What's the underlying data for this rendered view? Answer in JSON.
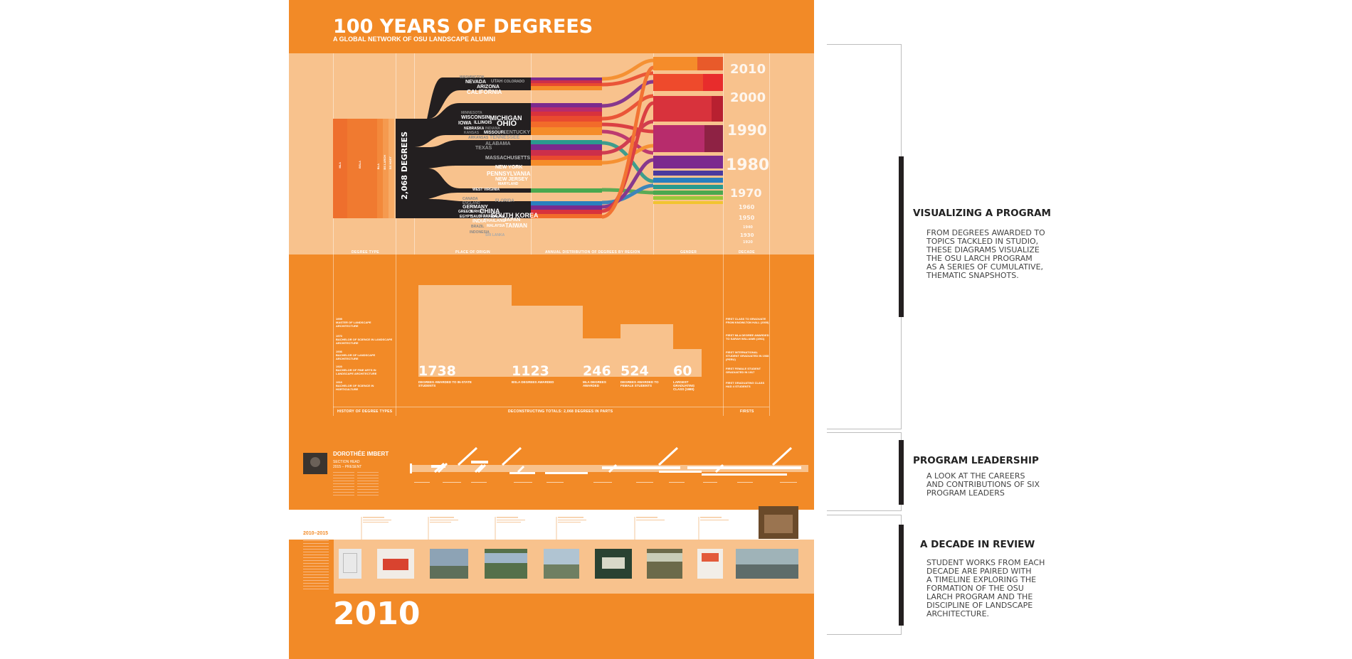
{
  "poster": {
    "title": "100 YEARS OF DEGREES",
    "subtitle": "A GLOBAL NETWORK OF OSU LANDSCAPE ALUMNI",
    "total_label": "2,068 DEGREES",
    "degree_types": [
      "MLA",
      "BSLA",
      "BLA",
      "BS LARCH",
      "BS HORT"
    ],
    "column_headers": [
      "DEGREE TYPE",
      "PLACE OF ORIGIN",
      "ANNUAL DISTRIBUTION OF DEGREES BY REGION",
      "GENDER",
      "DECADE"
    ],
    "places": [
      "WASHINGTON",
      "NEVADA",
      "UTAH",
      "COLORADO",
      "ARIZONA",
      "CALIFORNIA",
      "MINNESOTA",
      "WISCONSIN",
      "MICHIGAN",
      "IOWA",
      "ILLINOIS",
      "OHIO",
      "NEBRASKA",
      "INDIANA",
      "KANSAS",
      "MISSOURI",
      "KENTUCKY",
      "ARKANSAS",
      "TENNESSEE",
      "ALABAMA",
      "TEXAS",
      "MASSACHUSETTS",
      "NEW YORK",
      "PENNSYLVANIA",
      "NEW JERSEY",
      "MARYLAND",
      "WEST VIRGINIA",
      "FLORIDA",
      "CANADA",
      "ENGLAND",
      "GERMANY",
      "CHINA",
      "GREECE",
      "TURKEY",
      "ISRAEL",
      "SOUTH KOREA",
      "EGYPT",
      "SAUDI ARABIA",
      "U.A.E.",
      "INDIA",
      "THAILAND",
      "JAPAN",
      "MALAYSIA",
      "TAIWAN",
      "BRAZIL",
      "INDONESIA",
      "SRI LANKA"
    ],
    "decades": [
      "2010",
      "2000",
      "1990",
      "1980",
      "1970",
      "1960",
      "1950",
      "1940",
      "1930",
      "1920"
    ],
    "history": [
      {
        "year": "1995",
        "text": "MASTER OF LANDSCAPE ARCHITECTURE"
      },
      {
        "year": "1970",
        "text": "BACHELOR OF SCIENCE IN LANDSCAPE ARCHITECTURE"
      },
      {
        "year": "1936",
        "text": "BACHELOR OF LANDSCAPE ARCHITECTURE"
      },
      {
        "year": "1920",
        "text": "BACHELOR OF FINE ARTS IN LANDSCAPE ARCHITECTURE"
      },
      {
        "year": "1916",
        "text": "BACHELOR OF SCIENCE IN HORTICULTURE"
      }
    ],
    "stats": [
      {
        "value": "1738",
        "caption": "DEGREES AWARDED TO IN-STATE STUDENTS"
      },
      {
        "value": "1123",
        "caption": "BSLA DEGREES AWARDED"
      },
      {
        "value": "246",
        "caption": "MLA DEGREES AWARDED"
      },
      {
        "value": "524",
        "caption": "DEGREES AWARDED TO FEMALE STUDENTS"
      },
      {
        "value": "60",
        "caption": "LARGEST GRADUATING CLASS (1980)"
      }
    ],
    "firsts": [
      "FIRST CLASS TO GRADUATE FROM KNOWLTON HALL (2005)",
      "FIRST MLA DEGREE AWARDED TO SARAH WILLIAMS (1961)",
      "FIRST INTERNATIONAL STUDENT GRADUATED IN 1938 (PERU)",
      "FIRST FEMALE STUDENT GRADUATED IN 1917",
      "FIRST GRADUATING CLASS HAD 4 STUDENTS"
    ],
    "bottom_headers": [
      "HISTORY OF DEGREE TYPES",
      "DECONSTRUCTING TOTALS: 2,068 DEGREES IN PARTS",
      "FIRSTS"
    ],
    "leader": {
      "name": "DOROTHÉE IMBERT",
      "role": "SECTION HEAD",
      "years": "2015 – PRESENT"
    },
    "decade_range": "2010–2015",
    "big_year": "2010"
  },
  "sections": [
    {
      "title": "VISUALIZING A PROGRAM",
      "body": "FROM DEGREES AWARDED TO\nTOPICS TACKLED IN STUDIO,\nTHESE DIAGRAMS VISUALIZE\nTHE OSU LARCH PROGRAM\nAS A SERIES OF CUMULATIVE,\nTHEMATIC SNAPSHOTS."
    },
    {
      "title": "PROGRAM LEADERSHIP",
      "body": "A LOOK AT THE CAREERS\nAND CONTRIBUTIONS OF SIX\nPROGRAM LEADERS"
    },
    {
      "title": "A DECADE IN REVIEW",
      "body": "STUDENT WORKS FROM EACH\nDECADE ARE PAIRED WITH\nA TIMELINE EXPLORING THE\nFORMATION OF THE OSU\nLARCH PROGRAM AND THE\nDISCIPLINE OF LANDSCAPE\nARCHITECTURE."
    }
  ]
}
